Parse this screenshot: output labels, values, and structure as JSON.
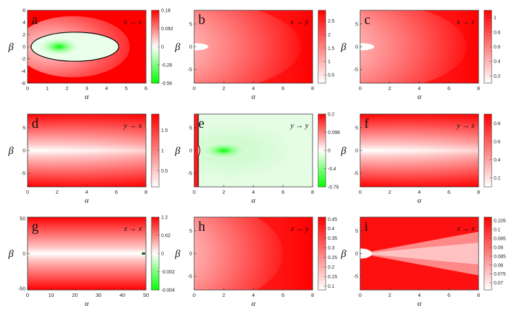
{
  "figure": {
    "colors": {
      "red": "#ff0000",
      "white": "#ffffff",
      "green": "#00ff00"
    }
  },
  "chart_data": [
    {
      "type": "heatmap",
      "panel": "a",
      "annotation": "x → x",
      "xlabel": "α",
      "ylabel": "β",
      "xlim": [
        0,
        6
      ],
      "ylim": [
        -6,
        6
      ],
      "xticks": [
        "0",
        "1",
        "2",
        "3",
        "4",
        "5",
        "6"
      ],
      "yticks": [
        "6",
        "4",
        "2",
        "0",
        "-2",
        "-4",
        "-6"
      ],
      "colorbar_ticks": [
        "0.18",
        "0.092",
        "0",
        "-0.28",
        "-0.56"
      ],
      "colorbar_range": [
        -0.56,
        0.18
      ],
      "green_center": [
        1.6,
        0
      ],
      "contour": "zero-level ellipse"
    },
    {
      "type": "heatmap",
      "panel": "b",
      "annotation": "x → y",
      "xlabel": "α",
      "ylabel": "β",
      "xlim": [
        0,
        8
      ],
      "ylim": [
        -8,
        8
      ],
      "xticks": [
        "0",
        "2",
        "4",
        "6",
        "8"
      ],
      "yticks": [
        "5",
        "0",
        "-5"
      ],
      "colorbar_ticks": [
        "2.5",
        "2",
        "1.5",
        "1",
        "0.5"
      ],
      "colorbar_range": [
        0.2,
        2.9
      ]
    },
    {
      "type": "heatmap",
      "panel": "c",
      "annotation": "x → z",
      "xlabel": "α",
      "ylabel": "β",
      "xlim": [
        0,
        8
      ],
      "ylim": [
        -8,
        8
      ],
      "xticks": [
        "0",
        "2",
        "4",
        "6",
        "8"
      ],
      "yticks": [
        "5",
        "0",
        "-5"
      ],
      "colorbar_ticks": [
        "1",
        "0.8",
        "0.6",
        "0.4",
        "0.2"
      ],
      "colorbar_range": [
        0.1,
        1.1
      ]
    },
    {
      "type": "heatmap",
      "panel": "d",
      "annotation": "y → x",
      "xlabel": "α",
      "ylabel": "β",
      "xlim": [
        0,
        8
      ],
      "ylim": [
        -8,
        8
      ],
      "xticks": [
        "0",
        "2",
        "4",
        "6",
        "8"
      ],
      "yticks": [
        "5",
        "0",
        "-5"
      ],
      "colorbar_ticks": [
        "1.5",
        "1",
        "0.5"
      ],
      "colorbar_range": [
        0.1,
        1.9
      ]
    },
    {
      "type": "heatmap",
      "panel": "e",
      "annotation": "y → y",
      "xlabel": "α",
      "ylabel": "β",
      "xlim": [
        0,
        8
      ],
      "ylim": [
        -8,
        8
      ],
      "xticks": [
        "0",
        "2",
        "4",
        "6",
        "8"
      ],
      "yticks": [
        "5",
        "0",
        "-5"
      ],
      "colorbar_ticks": [
        "0.2",
        "0.098",
        "0",
        "-0.4",
        "-0.79"
      ],
      "colorbar_range": [
        -0.79,
        0.2
      ],
      "green_center": [
        2,
        0
      ],
      "contour": "zero-level line near α=0.3"
    },
    {
      "type": "heatmap",
      "panel": "f",
      "annotation": "y → z",
      "xlabel": "α",
      "ylabel": "β",
      "xlim": [
        0,
        8
      ],
      "ylim": [
        -8,
        8
      ],
      "xticks": [
        "0",
        "2",
        "4",
        "6",
        "8"
      ],
      "yticks": [
        "5",
        "0",
        "-5"
      ],
      "colorbar_ticks": [
        "0.8",
        "0.6",
        "0.4",
        "0.2"
      ],
      "colorbar_range": [
        0.1,
        0.9
      ]
    },
    {
      "type": "heatmap",
      "panel": "g",
      "annotation": "z → x",
      "xlabel": "α",
      "ylabel": "β",
      "xlim": [
        0,
        52
      ],
      "ylim": [
        -52,
        52
      ],
      "xticks": [
        "0",
        "10",
        "20",
        "30",
        "40",
        "50"
      ],
      "yticks": [
        "50",
        "0",
        "-50"
      ],
      "colorbar_ticks": [
        "1.2",
        "0.62",
        "0",
        "-0.002",
        "-0.004"
      ],
      "colorbar_range": [
        -0.004,
        1.2
      ]
    },
    {
      "type": "heatmap",
      "panel": "h",
      "annotation": "z → y",
      "xlabel": "α",
      "ylabel": "β",
      "xlim": [
        0,
        8
      ],
      "ylim": [
        -8,
        8
      ],
      "xticks": [
        "0",
        "2",
        "4",
        "6",
        "8"
      ],
      "yticks": [
        "5",
        "0",
        "-5"
      ],
      "colorbar_ticks": [
        "0.45",
        "0.4",
        "0.35",
        "0.3",
        "0.25",
        "0.2",
        "0.15",
        "0.1"
      ],
      "colorbar_range": [
        0.08,
        0.46
      ]
    },
    {
      "type": "heatmap",
      "panel": "i",
      "annotation": "z → z",
      "xlabel": "α",
      "ylabel": "β",
      "xlim": [
        0,
        8
      ],
      "ylim": [
        -8,
        8
      ],
      "xticks": [
        "0",
        "2",
        "4",
        "6",
        "8"
      ],
      "yticks": [
        "5",
        "0",
        "-5"
      ],
      "colorbar_ticks": [
        "0.105",
        "0.1",
        "0.095",
        "0.09",
        "0.085",
        "0.08",
        "0.075",
        "0.07"
      ],
      "colorbar_range": [
        0.066,
        0.107
      ]
    }
  ]
}
